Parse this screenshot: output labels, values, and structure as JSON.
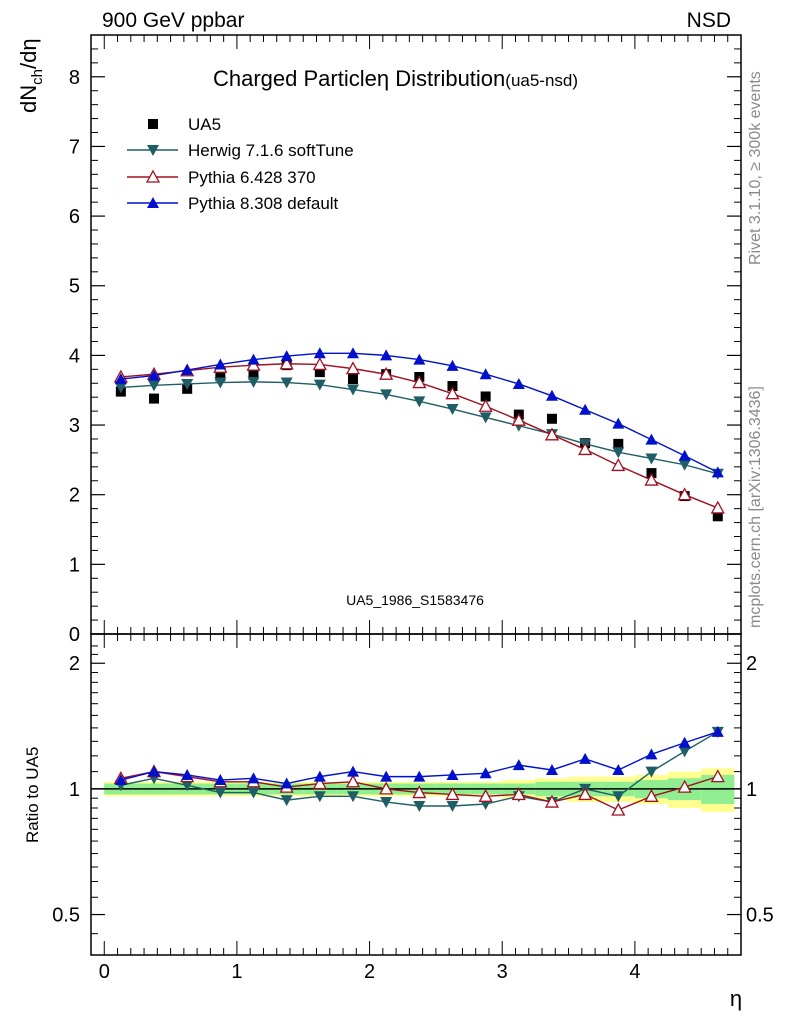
{
  "header": {
    "left": "900 GeV ppbar",
    "right": "NSD"
  },
  "side_labels": {
    "version": "Rivet 3.1.10, ≥ 300k events",
    "source": "mcplots.cern.ch [arXiv:1306.3436]"
  },
  "chart_data": [
    {
      "type": "scatter",
      "panel": "main",
      "title": "Charged Particle",
      "title_eta": "η",
      "title_rest": " Distribution",
      "subtitle": "(ua5-nsd)",
      "ylabel": "dN_ch/dη",
      "watermark": "UA5_1986_S1583476",
      "xlim": [
        -0.1,
        4.8
      ],
      "ylim": [
        0,
        8.6
      ],
      "yticks": [
        0,
        1,
        2,
        3,
        4,
        5,
        6,
        7,
        8
      ],
      "yticklabels": [
        "0",
        "1",
        "2",
        "3",
        "4",
        "5",
        "6",
        "7",
        "8"
      ],
      "legend_position": "top-left",
      "x": [
        0.125,
        0.375,
        0.625,
        0.875,
        1.125,
        1.375,
        1.625,
        1.875,
        2.125,
        2.375,
        2.625,
        2.875,
        3.125,
        3.375,
        3.625,
        3.875,
        4.125,
        4.375,
        4.625
      ],
      "series": [
        {
          "name": "UA5",
          "color": "#000000",
          "marker": "square",
          "values": [
            3.48,
            3.38,
            3.52,
            3.7,
            3.72,
            3.86,
            3.76,
            3.66,
            3.73,
            3.69,
            3.56,
            3.41,
            3.15,
            3.09,
            2.74,
            2.73,
            2.31,
            1.98,
            1.69
          ]
        },
        {
          "name": "Herwig 7.1.6 softTune",
          "color": "#1f5e66",
          "marker": "triangle-down",
          "values": [
            3.54,
            3.57,
            3.59,
            3.61,
            3.62,
            3.61,
            3.58,
            3.51,
            3.44,
            3.34,
            3.23,
            3.11,
            2.99,
            2.87,
            2.73,
            2.61,
            2.52,
            2.43,
            2.3
          ]
        },
        {
          "name": "Pythia 6.428 370",
          "color": "#a01020",
          "marker": "triangle-up-open",
          "values": [
            3.69,
            3.73,
            3.78,
            3.83,
            3.86,
            3.88,
            3.87,
            3.81,
            3.73,
            3.61,
            3.45,
            3.27,
            3.07,
            2.86,
            2.65,
            2.42,
            2.21,
            2.0,
            1.81
          ]
        },
        {
          "name": "Pythia 8.308 default",
          "color": "#0010cc",
          "marker": "triangle-up",
          "values": [
            3.66,
            3.71,
            3.79,
            3.87,
            3.94,
            3.99,
            4.03,
            4.03,
            4.0,
            3.94,
            3.85,
            3.73,
            3.59,
            3.42,
            3.22,
            3.02,
            2.79,
            2.56,
            2.32
          ]
        }
      ]
    },
    {
      "type": "line",
      "panel": "ratio",
      "ylabel": "Ratio to UA5",
      "xlabel": "η",
      "xlim": [
        -0.1,
        4.8
      ],
      "ylim": [
        0.4,
        2.35
      ],
      "yscale": "log",
      "xticks": [
        0,
        1,
        2,
        3,
        4
      ],
      "xticklabels": [
        "0",
        "1",
        "2",
        "3",
        "4"
      ],
      "yticklabels": [
        "0.5",
        "1",
        "2"
      ],
      "yticks": [
        0.5,
        1,
        2
      ],
      "band_inner": [
        0.03,
        0.03,
        0.03,
        0.03,
        0.03,
        0.03,
        0.03,
        0.03,
        0.03,
        0.03,
        0.03,
        0.03,
        0.03,
        0.04,
        0.04,
        0.04,
        0.05,
        0.06,
        0.08
      ],
      "band_outer": [
        0.04,
        0.04,
        0.04,
        0.04,
        0.04,
        0.04,
        0.04,
        0.04,
        0.04,
        0.04,
        0.04,
        0.04,
        0.05,
        0.06,
        0.07,
        0.07,
        0.08,
        0.1,
        0.12
      ],
      "x": [
        0.125,
        0.375,
        0.625,
        0.875,
        1.125,
        1.375,
        1.625,
        1.875,
        2.125,
        2.375,
        2.625,
        2.875,
        3.125,
        3.375,
        3.625,
        3.875,
        4.125,
        4.375,
        4.625
      ],
      "series": [
        {
          "name": "Herwig 7.1.6 softTune",
          "color": "#1f5e66",
          "marker": "triangle-down",
          "values": [
            1.02,
            1.06,
            1.02,
            0.98,
            0.98,
            0.94,
            0.96,
            0.96,
            0.93,
            0.91,
            0.91,
            0.92,
            0.96,
            0.93,
            1.0,
            0.96,
            1.1,
            1.23,
            1.37
          ]
        },
        {
          "name": "Pythia 6.428 370",
          "color": "#a01020",
          "marker": "triangle-up-open",
          "values": [
            1.06,
            1.1,
            1.07,
            1.04,
            1.04,
            1.01,
            1.03,
            1.04,
            1.0,
            0.98,
            0.97,
            0.96,
            0.97,
            0.93,
            0.97,
            0.89,
            0.96,
            1.01,
            1.07
          ]
        },
        {
          "name": "Pythia 8.308 default",
          "color": "#0010cc",
          "marker": "triangle-up",
          "values": [
            1.05,
            1.1,
            1.08,
            1.05,
            1.06,
            1.03,
            1.07,
            1.1,
            1.07,
            1.07,
            1.08,
            1.09,
            1.14,
            1.11,
            1.18,
            1.11,
            1.21,
            1.29,
            1.37
          ]
        }
      ]
    }
  ]
}
